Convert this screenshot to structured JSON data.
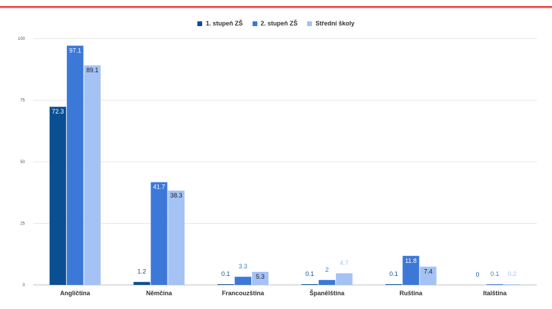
{
  "chart_data": {
    "type": "bar",
    "categories": [
      "Angličtina",
      "Němčina",
      "Francouzština",
      "Španělština",
      "Ruština",
      "Italština"
    ],
    "series": [
      {
        "name": "1. stupeň ZŠ",
        "color": "#0b4f93",
        "values": [
          72.3,
          1.2,
          0.1,
          0.1,
          0.1,
          0
        ]
      },
      {
        "name": "2. stupeň ZŠ",
        "color": "#3c78d8",
        "values": [
          97.1,
          41.7,
          3.3,
          2,
          11.8,
          0.1
        ]
      },
      {
        "name": "Střední školy",
        "color": "#a4c2f4",
        "values": [
          89.1,
          38.3,
          5.3,
          4.7,
          7.4,
          0.2
        ]
      }
    ],
    "yticks": [
      0,
      25,
      50,
      75,
      100
    ],
    "ylim": [
      0,
      100
    ],
    "grid": true,
    "legend": "top-center"
  }
}
